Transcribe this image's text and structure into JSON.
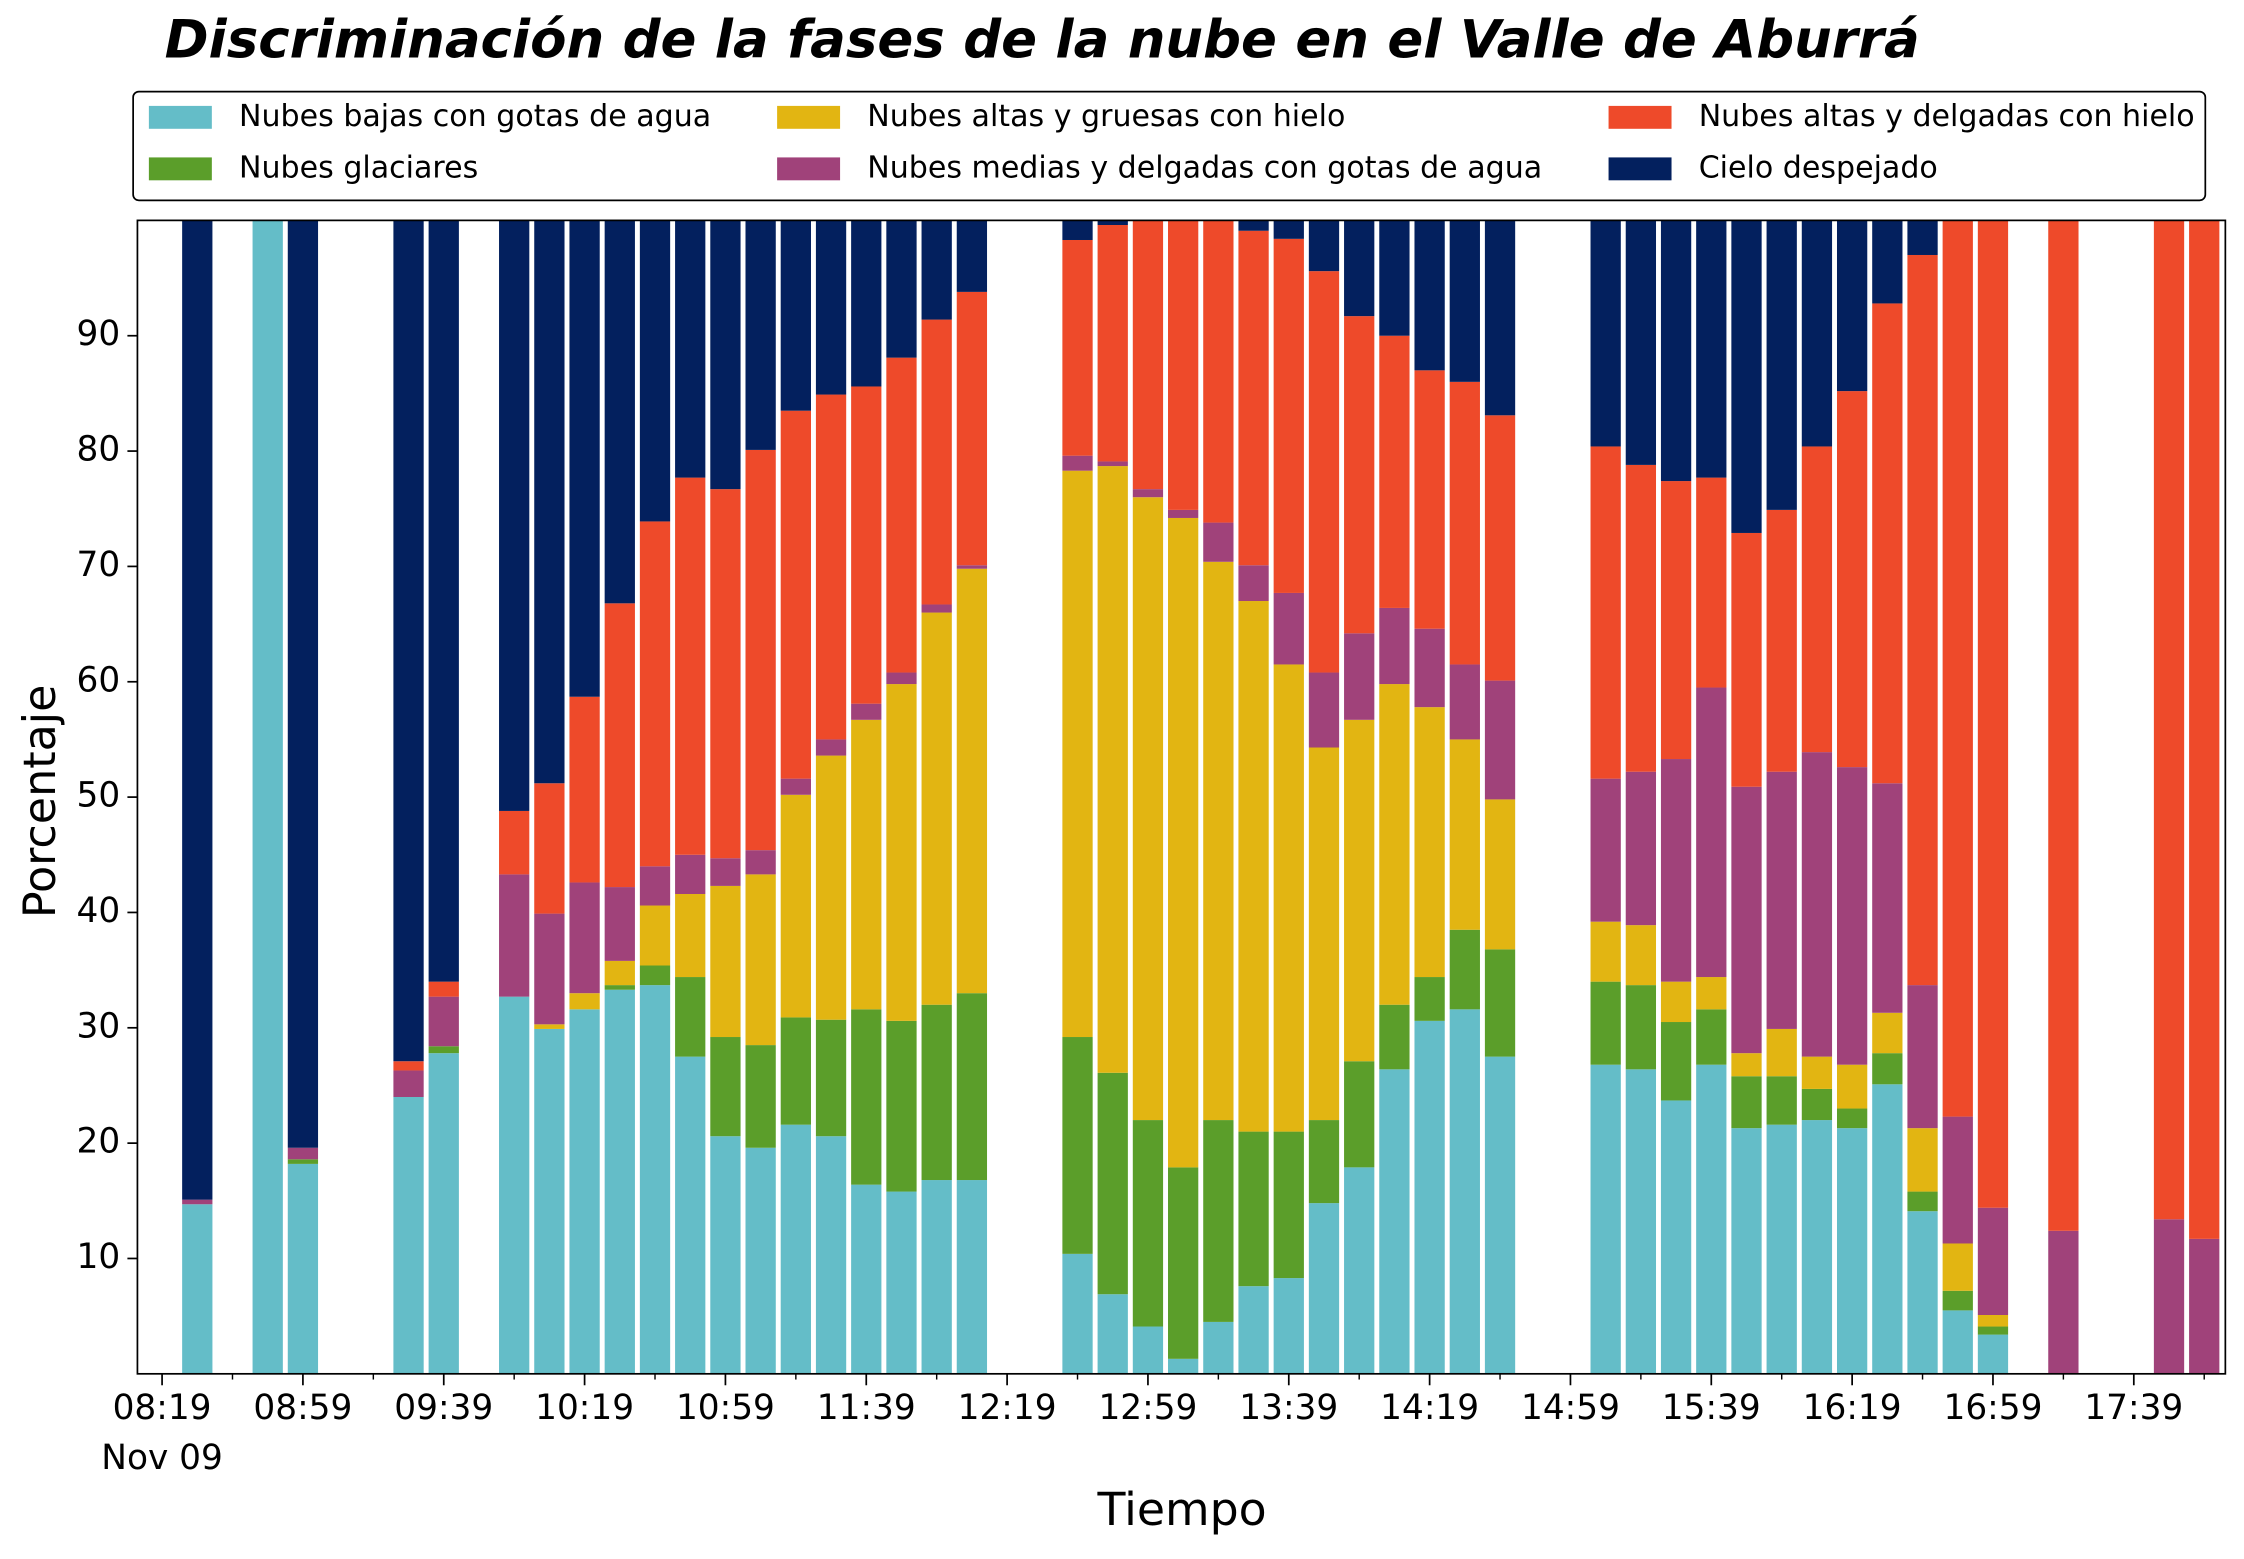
{
  "chart_data": {
    "type": "stacked_bar",
    "title": "Discriminación de la fases de la nube en el Valle de Aburrá",
    "xlabel": "Tiempo",
    "ylabel": "Porcentaje",
    "x": [
      "08:29",
      "08:49",
      "08:59",
      "09:29",
      "09:39",
      "09:59",
      "10:09",
      "10:19",
      "10:29",
      "10:39",
      "10:49",
      "10:59",
      "11:09",
      "11:19",
      "11:29",
      "11:39",
      "11:49",
      "11:59",
      "12:09",
      "12:39",
      "12:49",
      "12:59",
      "13:09",
      "13:19",
      "13:29",
      "13:39",
      "13:49",
      "13:59",
      "14:09",
      "14:19",
      "14:29",
      "14:39",
      "15:09",
      "15:19",
      "15:29",
      "15:39",
      "15:49",
      "15:59",
      "16:09",
      "16:19",
      "16:29",
      "16:39",
      "16:49",
      "16:59",
      "17:19",
      "17:49",
      "17:59"
    ],
    "xlim": [
      "08:12",
      "18:05"
    ],
    "xticks": [
      "08:19",
      "08:59",
      "09:39",
      "10:19",
      "10:59",
      "11:39",
      "12:19",
      "12:59",
      "13:39",
      "14:19",
      "14:59",
      "15:39",
      "16:19",
      "16:59",
      "17:39"
    ],
    "xtick_sublabel": "Nov 09",
    "ylim": [
      0,
      100
    ],
    "yticks": [
      10,
      20,
      30,
      40,
      50,
      60,
      70,
      80,
      90
    ],
    "legend": "top",
    "series": [
      {
        "name": "Nubes bajas con gotas de agua",
        "color": "#64bdc8",
        "values": [
          14.7,
          100,
          18.2,
          24.0,
          27.8,
          32.7,
          29.9,
          31.6,
          33.3,
          33.7,
          27.5,
          20.6,
          19.6,
          21.6,
          20.6,
          16.4,
          15.8,
          16.8,
          16.8,
          10.4,
          6.9,
          4.1,
          1.3,
          4.5,
          7.6,
          8.3,
          14.8,
          17.9,
          26.4,
          30.6,
          31.6,
          27.5,
          26.8,
          26.4,
          23.7,
          26.8,
          21.3,
          21.6,
          22.0,
          21.3,
          25.1,
          14.1,
          5.5,
          3.4,
          0,
          0,
          0
        ]
      },
      {
        "name": "Nubes glaciares",
        "color": "#5b9e2a",
        "values": [
          0,
          0,
          0.4,
          0,
          0.6,
          0,
          0,
          0,
          0.4,
          1.7,
          6.9,
          8.6,
          8.9,
          9.3,
          10.1,
          15.2,
          14.8,
          15.2,
          16.2,
          18.8,
          19.2,
          17.9,
          16.6,
          17.5,
          13.4,
          12.7,
          7.2,
          9.2,
          5.6,
          3.8,
          6.9,
          9.3,
          7.2,
          7.3,
          6.8,
          4.8,
          4.5,
          4.2,
          2.7,
          1.7,
          2.7,
          1.7,
          1.7,
          0.7,
          0,
          0,
          0
        ]
      },
      {
        "name": "Nubes altas y gruesas con hielo",
        "color": "#e2b512",
        "values": [
          0,
          0,
          0,
          0,
          0,
          0,
          0.4,
          1.4,
          2.1,
          5.2,
          7.2,
          13.1,
          14.8,
          19.3,
          22.9,
          25.1,
          29.2,
          34.0,
          36.8,
          49.1,
          52.6,
          54.0,
          56.3,
          48.4,
          46.0,
          40.5,
          32.3,
          29.6,
          27.8,
          23.4,
          16.5,
          13.0,
          5.2,
          5.2,
          3.5,
          2.8,
          2.0,
          4.1,
          2.8,
          3.8,
          3.5,
          5.5,
          4.1,
          1.0,
          0,
          0,
          0
        ]
      },
      {
        "name": "Nubes medias y delgadas con gotas de agua",
        "color": "#a0427a",
        "values": [
          0.4,
          0,
          1.0,
          2.3,
          4.3,
          10.6,
          9.6,
          9.6,
          6.4,
          3.4,
          3.4,
          2.4,
          2.1,
          1.4,
          1.4,
          1.4,
          1.0,
          0.7,
          0.3,
          1.3,
          0.4,
          0.7,
          0.7,
          3.4,
          3.1,
          6.2,
          6.5,
          7.5,
          6.6,
          6.8,
          6.5,
          10.3,
          12.4,
          13.3,
          19.3,
          25.1,
          23.1,
          22.3,
          26.4,
          25.8,
          19.9,
          12.4,
          11.0,
          9.3,
          12.4,
          13.4,
          11.7
        ]
      },
      {
        "name": "Nubes altas y delgadas con hielo",
        "color": "#ee4a2a",
        "values": [
          0,
          0,
          0,
          0.8,
          1.3,
          5.5,
          11.3,
          16.1,
          24.6,
          29.9,
          32.7,
          32.0,
          34.7,
          31.9,
          29.9,
          27.5,
          27.3,
          24.7,
          23.7,
          18.7,
          20.5,
          23.3,
          25.1,
          26.2,
          29.0,
          30.7,
          34.8,
          27.5,
          23.6,
          22.4,
          24.5,
          23.0,
          28.8,
          26.6,
          24.1,
          18.2,
          22.0,
          22.7,
          26.5,
          32.6,
          41.6,
          63.3,
          77.7,
          85.6,
          87.6,
          86.6,
          88.3
        ]
      },
      {
        "name": "Cielo despejado",
        "color": "#03205e",
        "values": [
          84.9,
          0,
          80.4,
          72.9,
          66.0,
          51.2,
          48.8,
          41.3,
          33.2,
          26.1,
          22.3,
          23.3,
          19.9,
          16.5,
          15.1,
          14.4,
          11.9,
          8.6,
          6.2,
          1.7,
          0.4,
          0,
          0,
          0,
          0.9,
          1.6,
          4.4,
          8.3,
          10.0,
          13.0,
          14.0,
          16.9,
          19.6,
          21.2,
          22.6,
          22.3,
          27.1,
          25.1,
          19.6,
          14.8,
          7.2,
          3.0,
          0,
          0,
          0,
          0,
          0
        ]
      }
    ]
  }
}
